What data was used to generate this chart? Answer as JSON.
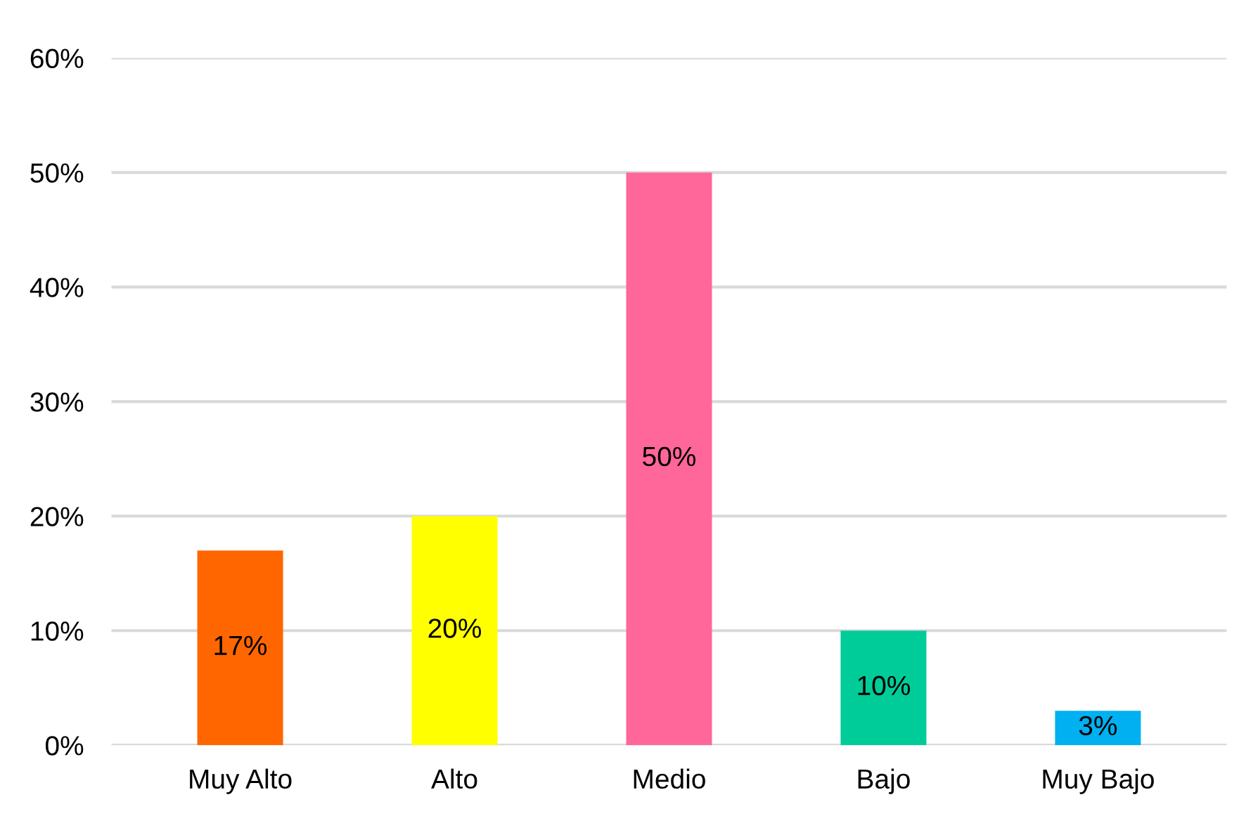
{
  "chart_data": {
    "type": "bar",
    "categories": [
      "Muy Alto",
      "Alto",
      "Medio",
      "Bajo",
      "Muy Bajo"
    ],
    "values": [
      17,
      20,
      50,
      10,
      3
    ],
    "colors": [
      "#ff6600",
      "#ffff00",
      "#ff6699",
      "#00cc99",
      "#00b0f0"
    ],
    "value_labels": [
      "17%",
      "20%",
      "50%",
      "10%",
      "3%"
    ],
    "ylim": [
      0,
      60
    ],
    "yticks": [
      {
        "value": 0,
        "label": "0%"
      },
      {
        "value": 10,
        "label": "10%"
      },
      {
        "value": 20,
        "label": "20%"
      },
      {
        "value": 30,
        "label": "30%"
      },
      {
        "value": 40,
        "label": "40%"
      },
      {
        "value": 50,
        "label": "50%"
      },
      {
        "value": 60,
        "label": "60%"
      }
    ],
    "grid": "y"
  }
}
